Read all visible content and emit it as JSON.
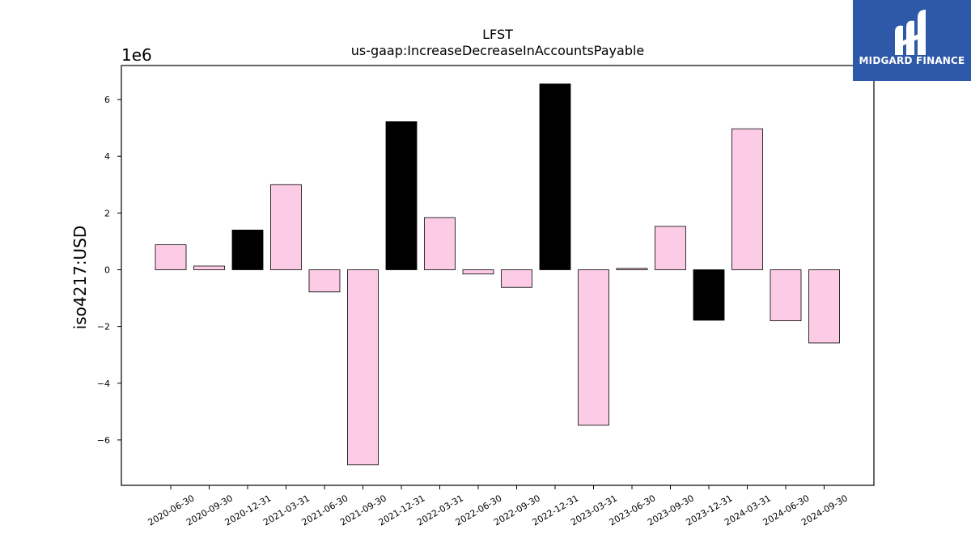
{
  "chart_data": {
    "type": "bar",
    "title": "LFST",
    "subtitle": "us-gaap:IncreaseDecreaseInAccountsPayable",
    "xlabel": "",
    "ylabel": "iso4217:USD",
    "y_multiplier": "1e6",
    "ylim": [
      -7.6,
      7.2
    ],
    "yticks": [
      -6,
      -4,
      -2,
      0,
      2,
      4,
      6
    ],
    "ytick_labels": [
      "−6",
      "−4",
      "−2",
      "0",
      "2",
      "4",
      "6"
    ],
    "categories": [
      "2020-06-30",
      "2020-09-30",
      "2020-12-31",
      "2021-03-31",
      "2021-06-30",
      "2021-09-30",
      "2021-12-31",
      "2022-03-31",
      "2022-06-30",
      "2022-09-30",
      "2022-12-31",
      "2023-03-31",
      "2023-06-30",
      "2023-09-30",
      "2023-12-31",
      "2024-03-31",
      "2024-06-30",
      "2024-09-30"
    ],
    "values": [
      0.88,
      0.13,
      1.4,
      3.0,
      -0.78,
      -6.88,
      5.22,
      1.84,
      -0.15,
      -0.62,
      6.55,
      -5.48,
      0.05,
      1.53,
      -1.78,
      4.97,
      -1.8,
      -2.58
    ],
    "bar_colors": [
      "#fccce6",
      "#fccce6",
      "#000000",
      "#fccce6",
      "#fccce6",
      "#fccce6",
      "#000000",
      "#fccce6",
      "#fccce6",
      "#fccce6",
      "#000000",
      "#fccce6",
      "#fccce6",
      "#fccce6",
      "#000000",
      "#fccce6",
      "#fccce6",
      "#fccce6"
    ],
    "grid": false
  },
  "logo": {
    "text": "MIDGARD FINANCE",
    "color": "#2e58a8"
  }
}
